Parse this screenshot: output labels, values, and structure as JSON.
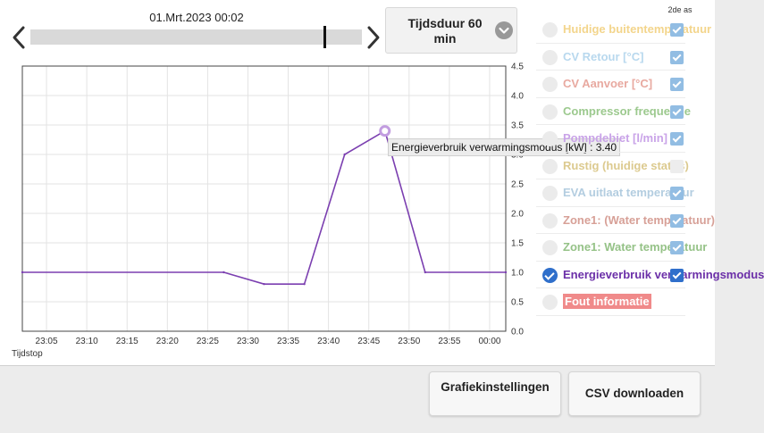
{
  "header": {
    "date_label": "01.Mrt.2023 00:02",
    "duration_label": "Tijdsduur 60 min",
    "slider_position": 0.89
  },
  "chart": {
    "tooltip": "Energieverbruik verwarmingsmodus [kW] : 3.40",
    "x_axis_title": "Tijdstop",
    "x_tick_labels": [
      "23:05",
      "23:10",
      "23:15",
      "23:20",
      "23:25",
      "23:30",
      "23:35",
      "23:40",
      "23:45",
      "23:50",
      "23:55",
      "00:00"
    ],
    "y_tick_labels": [
      "4.5",
      "4.0",
      "3.5",
      "3.0",
      "2.5",
      "2.0",
      "1.5",
      "1.0",
      "0.5",
      "0.0"
    ]
  },
  "chart_data": {
    "type": "line",
    "x": [
      "23:02",
      "23:27",
      "23:32",
      "23:37",
      "23:42",
      "23:47",
      "23:52",
      "00:02"
    ],
    "series": [
      {
        "name": "Energieverbruik verwarmingsmodus [kW]",
        "color": "#7b3fb0",
        "values": [
          1.0,
          1.0,
          0.8,
          0.8,
          3.0,
          3.4,
          1.0,
          1.0
        ]
      }
    ],
    "x_range": [
      "23:02",
      "00:02"
    ],
    "ylim": [
      0,
      4.5
    ],
    "y_axis_side": "right",
    "grid": true,
    "highlighted_point": {
      "x": "23:47",
      "y": 3.4
    }
  },
  "legend": {
    "axis2_heading": "2de as",
    "items": [
      {
        "label": "Huidige buitentemperatuur",
        "color": "#f3d58c",
        "selected": false,
        "axis2": true
      },
      {
        "label": "CV Retour [°C]",
        "color": "#b8d8ee",
        "selected": false,
        "axis2": true
      },
      {
        "label": "CV Aanvoer [°C]",
        "color": "#e8a9a0",
        "selected": false,
        "axis2": true
      },
      {
        "label": "Compressor frequentie",
        "color": "#9cc98e",
        "selected": false,
        "axis2": true
      },
      {
        "label": "Pompdebiet [l/min]",
        "color": "#c9a3e8",
        "selected": false,
        "axis2": true
      },
      {
        "label": "Rustig (huidige status)",
        "color": "#dcca8f",
        "selected": false,
        "axis2": false
      },
      {
        "label": "EVA uitlaat temperatuur",
        "color": "#b3cde0",
        "selected": false,
        "axis2": true
      },
      {
        "label": "Zone1: (Water temperatuur)",
        "color": "#d7a097",
        "selected": false,
        "axis2": true
      },
      {
        "label": "Zone1: Water temperatuur",
        "color": "#95c287",
        "selected": false,
        "axis2": true
      },
      {
        "label": "Energieverbruik verwarmingsmodus",
        "color": "#6b2fa8",
        "selected": true,
        "axis2": true
      },
      {
        "label": "Fout informatie",
        "color": "#f08a8a",
        "selected": false,
        "badge": true
      }
    ]
  },
  "buttons": {
    "chart_settings": "Grafiekinstellingen",
    "csv_download": "CSV downloaden"
  }
}
